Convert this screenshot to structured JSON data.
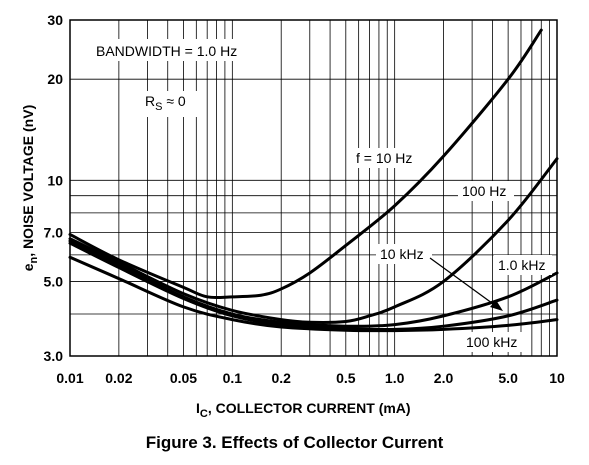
{
  "caption": "Figure 3. Effects of Collector Current",
  "chart_data": {
    "type": "line",
    "title": "",
    "xlabel": {
      "main": "I",
      "sub": "C",
      "rest": ", COLLECTOR CURRENT (mA)"
    },
    "ylabel": {
      "main": "e",
      "sub": "n",
      "rest": ", NOISE VOLTAGE (nV)"
    },
    "x_scale": "log",
    "y_scale": "log",
    "xlim": [
      0.01,
      10
    ],
    "ylim": [
      3.0,
      30
    ],
    "grid": true,
    "x_ticks": [
      {
        "v": 0.01,
        "label": "0.01"
      },
      {
        "v": 0.02,
        "label": "0.02"
      },
      {
        "v": 0.05,
        "label": "0.05"
      },
      {
        "v": 0.1,
        "label": "0.1"
      },
      {
        "v": 0.2,
        "label": "0.2"
      },
      {
        "v": 0.5,
        "label": "0.5"
      },
      {
        "v": 1,
        "label": "1.0"
      },
      {
        "v": 2,
        "label": "2.0"
      },
      {
        "v": 5,
        "label": "5.0"
      },
      {
        "v": 10,
        "label": "10"
      }
    ],
    "y_ticks": [
      {
        "v": 3,
        "label": "3.0"
      },
      {
        "v": 5,
        "label": "5.0"
      },
      {
        "v": 7,
        "label": "7.0"
      },
      {
        "v": 10,
        "label": "10"
      },
      {
        "v": 20,
        "label": "20"
      },
      {
        "v": 30,
        "label": "30"
      }
    ],
    "x_grid": [
      0.01,
      0.02,
      0.03,
      0.04,
      0.05,
      0.06,
      0.07,
      0.08,
      0.09,
      0.1,
      0.2,
      0.3,
      0.4,
      0.5,
      0.6,
      0.7,
      0.8,
      0.9,
      1,
      2,
      3,
      4,
      5,
      6,
      7,
      8,
      9,
      10
    ],
    "y_grid": [
      3,
      4,
      5,
      6,
      7,
      8,
      9,
      10,
      20,
      30
    ],
    "annotations": [
      {
        "id": "bandwidth",
        "text": "BANDWIDTH = 1.0 Hz"
      },
      {
        "id": "rs",
        "main": "R",
        "sub": "S",
        "rest": " ≈ 0"
      }
    ],
    "series": [
      {
        "name": "f = 10 Hz",
        "points": [
          [
            0.01,
            6.9
          ],
          [
            0.02,
            5.8
          ],
          [
            0.05,
            4.8
          ],
          [
            0.07,
            4.5
          ],
          [
            0.1,
            4.5
          ],
          [
            0.15,
            4.55
          ],
          [
            0.2,
            4.75
          ],
          [
            0.3,
            5.3
          ],
          [
            0.5,
            6.4
          ],
          [
            1,
            8.4
          ],
          [
            2,
            11.8
          ],
          [
            5,
            20
          ],
          [
            8,
            28
          ]
        ]
      },
      {
        "name": "100 Hz",
        "points": [
          [
            0.01,
            6.7
          ],
          [
            0.02,
            5.7
          ],
          [
            0.05,
            4.6
          ],
          [
            0.1,
            4.1
          ],
          [
            0.2,
            3.85
          ],
          [
            0.3,
            3.78
          ],
          [
            0.5,
            3.8
          ],
          [
            0.7,
            3.95
          ],
          [
            1,
            4.2
          ],
          [
            2,
            5.0
          ],
          [
            5,
            7.6
          ],
          [
            10,
            11.6
          ]
        ]
      },
      {
        "name": "1.0 kHz",
        "points": [
          [
            0.01,
            6.6
          ],
          [
            0.02,
            5.6
          ],
          [
            0.05,
            4.5
          ],
          [
            0.1,
            4.0
          ],
          [
            0.2,
            3.78
          ],
          [
            0.5,
            3.68
          ],
          [
            1,
            3.72
          ],
          [
            2,
            3.95
          ],
          [
            5,
            4.5
          ],
          [
            10,
            5.3
          ]
        ]
      },
      {
        "name": "10 kHz",
        "points": [
          [
            0.01,
            6.5
          ],
          [
            0.02,
            5.5
          ],
          [
            0.05,
            4.45
          ],
          [
            0.1,
            3.95
          ],
          [
            0.2,
            3.72
          ],
          [
            0.5,
            3.62
          ],
          [
            1,
            3.6
          ],
          [
            2,
            3.68
          ],
          [
            5,
            3.95
          ],
          [
            10,
            4.4
          ]
        ]
      },
      {
        "name": "100 kHz",
        "points": [
          [
            0.01,
            5.9
          ],
          [
            0.02,
            5.1
          ],
          [
            0.05,
            4.2
          ],
          [
            0.1,
            3.85
          ],
          [
            0.2,
            3.66
          ],
          [
            0.5,
            3.58
          ],
          [
            1,
            3.57
          ],
          [
            2,
            3.6
          ],
          [
            5,
            3.7
          ],
          [
            10,
            3.85
          ]
        ]
      }
    ]
  }
}
